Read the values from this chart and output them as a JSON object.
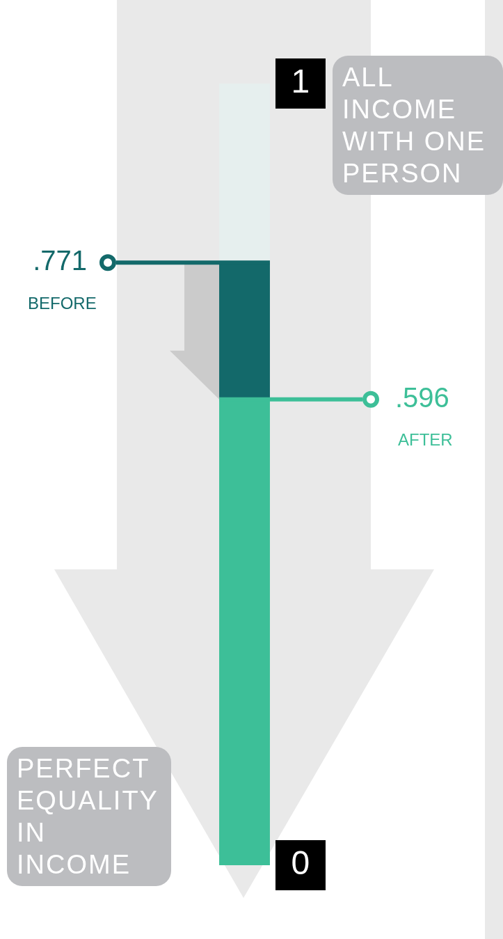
{
  "chart_data": {
    "type": "bar",
    "categories": [
      null
    ],
    "stacked": true,
    "series": [
      {
        "color": "#3dbf98",
        "values": [
          0.596
        ]
      },
      {
        "color": "#13696a",
        "values": [
          0.175
        ]
      },
      {
        "color": "#e6efee",
        "values": [
          0.229
        ]
      }
    ],
    "ylim": [
      0,
      1
    ],
    "yticks": [
      0,
      1
    ],
    "legend": false,
    "ref_lines": [
      {
        "axis": "y",
        "value": 0.771,
        "label": ".771",
        "color": "#13696a"
      },
      {
        "axis": "y",
        "value": 0.596,
        "label": ".596",
        "color": "#3dbf98"
      }
    ],
    "annotations": [
      "BEFORE",
      "AFTER",
      "ALL INCOME WITH ONE PERSON",
      "PERFECT EQUALITY IN INCOME"
    ]
  }
}
